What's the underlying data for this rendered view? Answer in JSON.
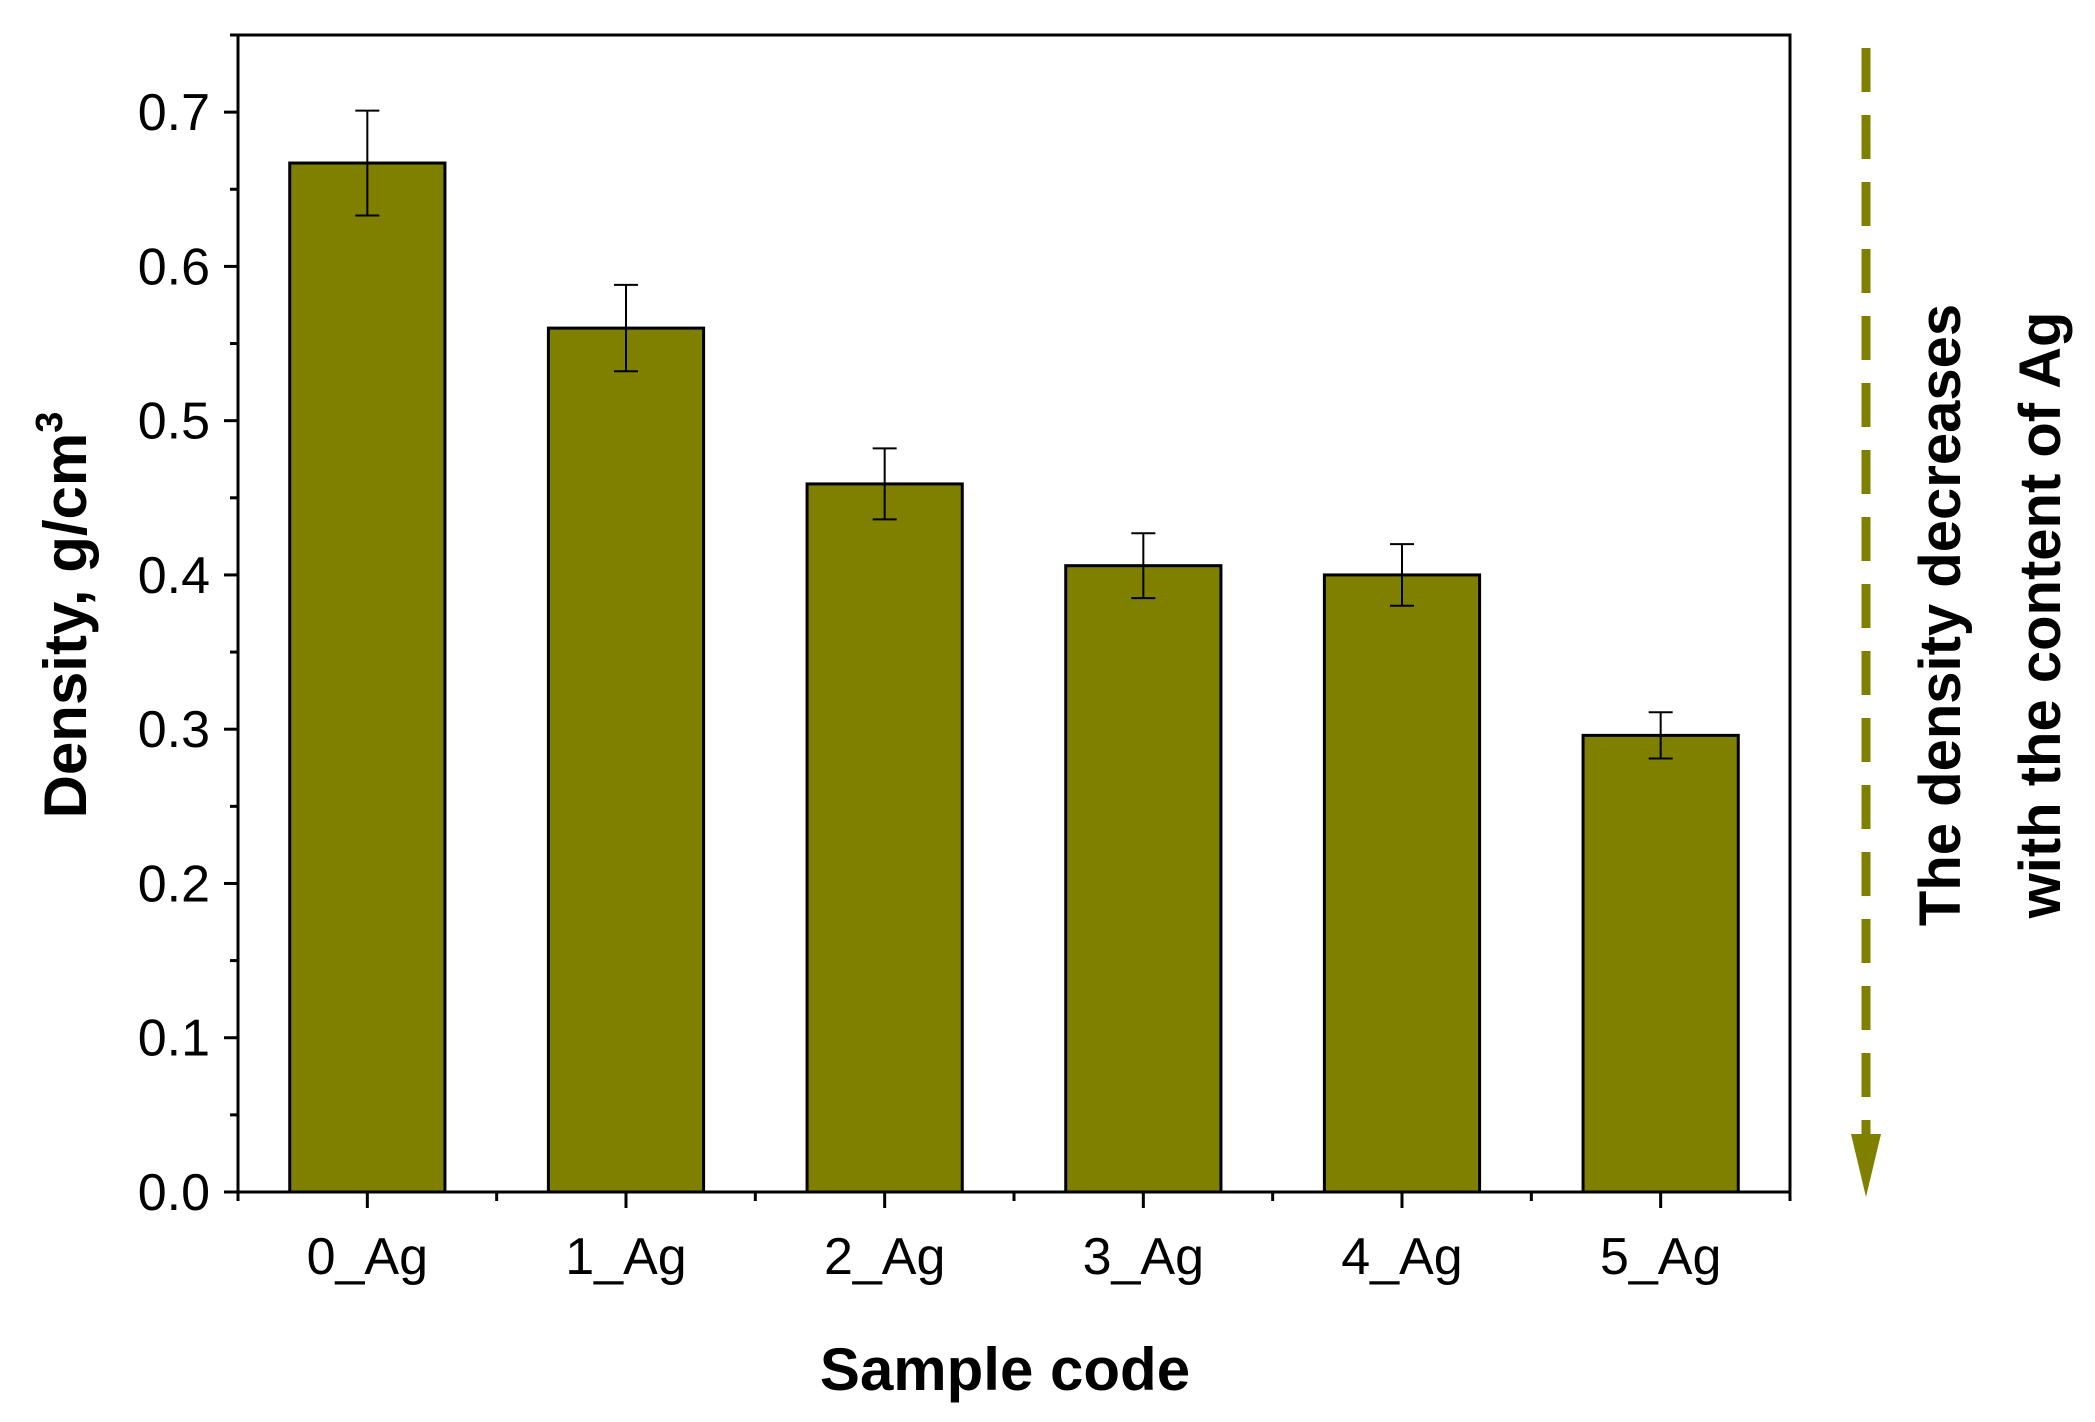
{
  "chart_data": {
    "type": "bar",
    "categories": [
      "0_Ag",
      "1_Ag",
      "2_Ag",
      "3_Ag",
      "4_Ag",
      "5_Ag"
    ],
    "values": [
      0.667,
      0.56,
      0.459,
      0.406,
      0.4,
      0.296
    ],
    "errors": [
      0.034,
      0.028,
      0.023,
      0.021,
      0.02,
      0.015
    ],
    "ylabel": "Density, g/cm",
    "ylabel_superscript": "3",
    "xlabel": "Sample code",
    "ylim": [
      0.0,
      0.75
    ],
    "yticks": [
      "0.0",
      "0.1",
      "0.2",
      "0.3",
      "0.4",
      "0.5",
      "0.6",
      "0.7"
    ],
    "ytick_values": [
      0.0,
      0.1,
      0.2,
      0.3,
      0.4,
      0.5,
      0.6,
      0.7
    ],
    "grid": false,
    "bar_color": "#7f7f00",
    "arrow_color": "#7f7f00",
    "annotation": {
      "line1": "The density decreases",
      "line2": "with the content of Ag"
    }
  }
}
